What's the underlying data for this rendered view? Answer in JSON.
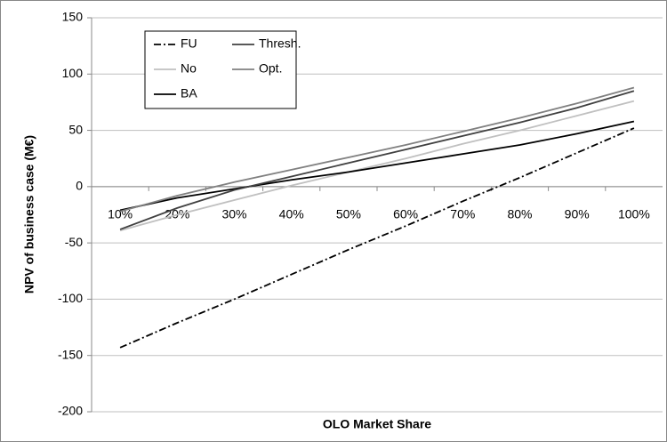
{
  "chart_data": {
    "type": "line",
    "xlabel": "OLO Market Share",
    "ylabel": "NPV of business case (M€)",
    "categories": [
      "10%",
      "20%",
      "30%",
      "40%",
      "50%",
      "60%",
      "70%",
      "80%",
      "90%",
      "100%"
    ],
    "series": [
      {
        "name": "FU",
        "color": "#000000",
        "dash": "dashdot",
        "values": [
          -143,
          -121,
          -100,
          -78,
          -56,
          -35,
          -13,
          8,
          30,
          52
        ]
      },
      {
        "name": "No",
        "color": "#c0c0c0",
        "dash": "solid",
        "values": [
          -39,
          -25,
          -12,
          1,
          13,
          25,
          38,
          50,
          63,
          76
        ]
      },
      {
        "name": "BA",
        "color": "#000000",
        "dash": "solid",
        "values": [
          -21,
          -10,
          -2,
          6,
          13,
          21,
          29,
          37,
          47,
          58
        ]
      },
      {
        "name": "Thresh.",
        "color": "#404040",
        "dash": "solid",
        "values": [
          -38,
          -19,
          -3,
          9,
          21,
          33,
          45,
          57,
          70,
          85
        ]
      },
      {
        "name": "Opt.",
        "color": "#808080",
        "dash": "solid",
        "values": [
          -22,
          -8,
          4,
          15,
          26,
          37,
          49,
          61,
          74,
          88
        ]
      }
    ],
    "ylim": [
      -200,
      150
    ],
    "yticks": [
      -200,
      -150,
      -100,
      -50,
      0,
      50,
      100,
      150
    ],
    "grid": true,
    "legend": "top-left"
  }
}
